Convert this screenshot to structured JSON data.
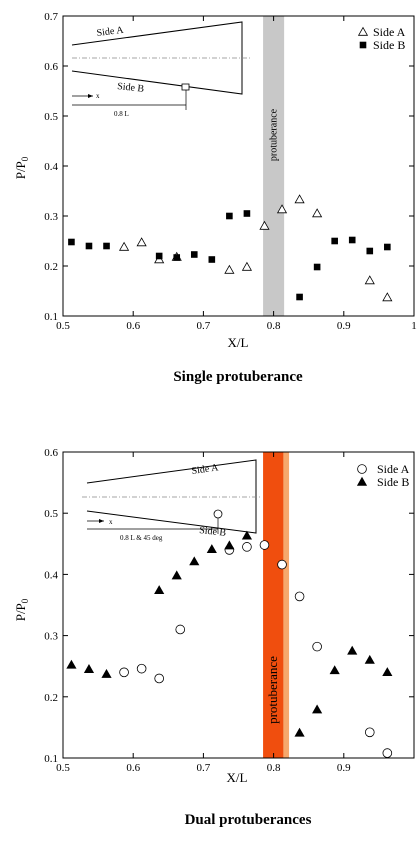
{
  "chart_data": [
    {
      "type": "scatter",
      "caption": "Single protuberance",
      "xlabel": "X/L",
      "ylabel": "P/P",
      "ylabel_sub": "0",
      "xlim": [
        0.5,
        1.0
      ],
      "ylim": [
        0.1,
        0.7
      ],
      "x_ticks": [
        0.5,
        0.6,
        0.7,
        0.8,
        0.9,
        1.0
      ],
      "x_tick_labels": [
        "0.5",
        "0.6",
        "0.7",
        "0.8",
        "0.9",
        "1"
      ],
      "y_ticks": [
        0.1,
        0.2,
        0.3,
        0.4,
        0.5,
        0.6,
        0.7
      ],
      "y_tick_labels": [
        "0.1",
        "0.2",
        "0.3",
        "0.4",
        "0.5",
        "0.6",
        "0.7"
      ],
      "grid": false,
      "legend_position": "top-right",
      "band": {
        "x_range": [
          0.785,
          0.815
        ],
        "color": "#c8c8c8",
        "label": "protuberance"
      },
      "series": [
        {
          "name": "Side A",
          "marker": "open-triangle",
          "x": [
            0.587,
            0.612,
            0.637,
            0.662,
            0.737,
            0.762,
            0.787,
            0.812,
            0.837,
            0.862,
            0.937,
            0.962
          ],
          "y": [
            0.238,
            0.247,
            0.213,
            0.218,
            0.192,
            0.198,
            0.28,
            0.313,
            0.333,
            0.305,
            0.171,
            0.137
          ]
        },
        {
          "name": "Side B",
          "marker": "filled-square",
          "x": [
            0.512,
            0.537,
            0.562,
            0.637,
            0.662,
            0.687,
            0.712,
            0.737,
            0.762,
            0.837,
            0.862,
            0.887,
            0.912,
            0.937,
            0.962
          ],
          "y": [
            0.248,
            0.24,
            0.24,
            0.22,
            0.217,
            0.223,
            0.213,
            0.3,
            0.305,
            0.138,
            0.198,
            0.25,
            0.252,
            0.23,
            0.238
          ]
        }
      ],
      "inset": {
        "side_a": "Side A",
        "side_b": "Side B",
        "x_label": "x",
        "length_label": "0.8 L"
      }
    },
    {
      "type": "scatter",
      "caption": "Dual protuberances",
      "xlabel": "X/L",
      "ylabel": "P/P",
      "ylabel_sub": "0",
      "xlim": [
        0.5,
        1.0
      ],
      "ylim": [
        0.1,
        0.6
      ],
      "x_ticks": [
        0.5,
        0.6,
        0.7,
        0.8,
        0.9
      ],
      "x_tick_labels": [
        "0.5",
        "0.6",
        "0.7",
        "0.8",
        "0.9"
      ],
      "y_ticks": [
        0.1,
        0.2,
        0.3,
        0.4,
        0.5,
        0.6
      ],
      "y_tick_labels": [
        "0.1",
        "0.2",
        "0.3",
        "0.4",
        "0.5",
        "0.6"
      ],
      "grid": false,
      "legend_position": "top-right",
      "bands": [
        {
          "x_range": [
            0.785,
            0.814
          ],
          "color": "#f04e0e"
        },
        {
          "x_range": [
            0.814,
            0.822
          ],
          "color": "#f6a86c"
        }
      ],
      "band_label": "protuberance",
      "series": [
        {
          "name": "Side A",
          "marker": "open-circle",
          "x": [
            0.587,
            0.612,
            0.637,
            0.667,
            0.737,
            0.762,
            0.787,
            0.812,
            0.837,
            0.862,
            0.937,
            0.962
          ],
          "y": [
            0.24,
            0.246,
            0.23,
            0.31,
            0.44,
            0.445,
            0.448,
            0.416,
            0.364,
            0.282,
            0.142,
            0.108
          ]
        },
        {
          "name": "Side B",
          "marker": "filled-triangle",
          "x": [
            0.512,
            0.537,
            0.562,
            0.637,
            0.662,
            0.687,
            0.712,
            0.737,
            0.762,
            0.837,
            0.862,
            0.887,
            0.912,
            0.937,
            0.962
          ],
          "y": [
            0.252,
            0.245,
            0.237,
            0.374,
            0.398,
            0.421,
            0.441,
            0.447,
            0.463,
            0.141,
            0.179,
            0.243,
            0.275,
            0.26,
            0.24
          ]
        }
      ],
      "inset": {
        "side_a": "Side A",
        "side_b": "Side B",
        "x_label": "x",
        "length_label": "0.8 L & 45 deg"
      }
    }
  ]
}
